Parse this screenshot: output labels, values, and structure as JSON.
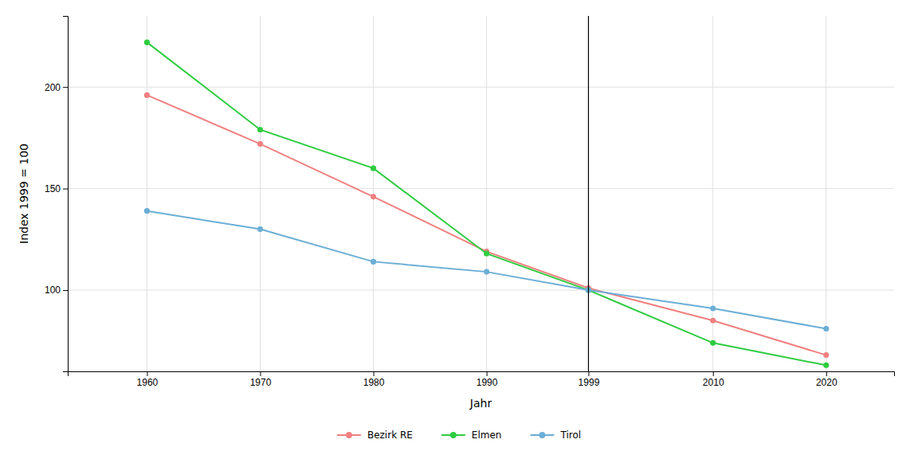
{
  "chart_data": {
    "type": "line",
    "xlabel": "Jahr",
    "ylabel": "Index 1999 = 100",
    "x": [
      1960,
      1970,
      1980,
      1990,
      1999,
      2010,
      2020
    ],
    "series": [
      {
        "name": "Bezirk RE",
        "color": "#F08080",
        "marker": "circle",
        "values": [
          196,
          172,
          146,
          119,
          101,
          85,
          68
        ]
      },
      {
        "name": "Elmen",
        "color": "#2ECC40",
        "marker": "circle",
        "values": [
          222,
          179,
          160,
          118,
          100,
          74,
          63
        ]
      },
      {
        "name": "Tirol",
        "color": "#6BAED6",
        "marker": "circle",
        "values": [
          139,
          130,
          114,
          109,
          100,
          91,
          81
        ]
      }
    ],
    "vline": {
      "value": 1999,
      "color": "black"
    },
    "xlim": [
      1953,
      2026
    ],
    "ylim": [
      60,
      235
    ],
    "xticks": [
      1960,
      1970,
      1980,
      1990,
      1999,
      2010,
      2020
    ],
    "yticks": [
      100,
      150,
      200
    ],
    "grid": true,
    "legend": "bottom"
  }
}
